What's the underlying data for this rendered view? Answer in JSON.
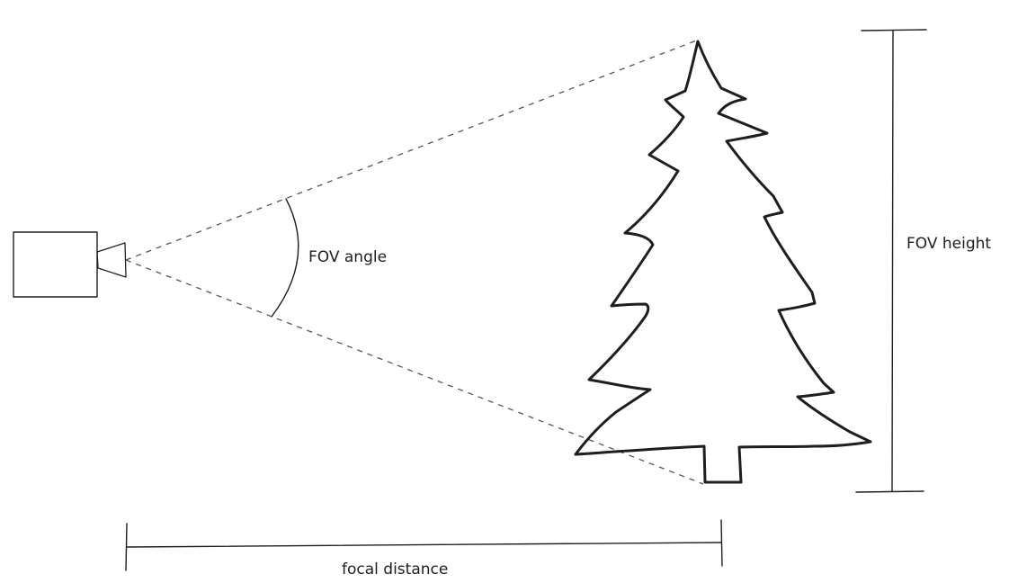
{
  "labels": {
    "fov_angle": "FOV angle",
    "fov_height": "FOV height",
    "focal_distance": "focal distance"
  },
  "colors": {
    "ink": "#1e1e1e",
    "dash": "#555555",
    "background": "#ffffff"
  },
  "icons": {
    "camera": "camera-icon",
    "tree": "pine-tree-icon"
  }
}
